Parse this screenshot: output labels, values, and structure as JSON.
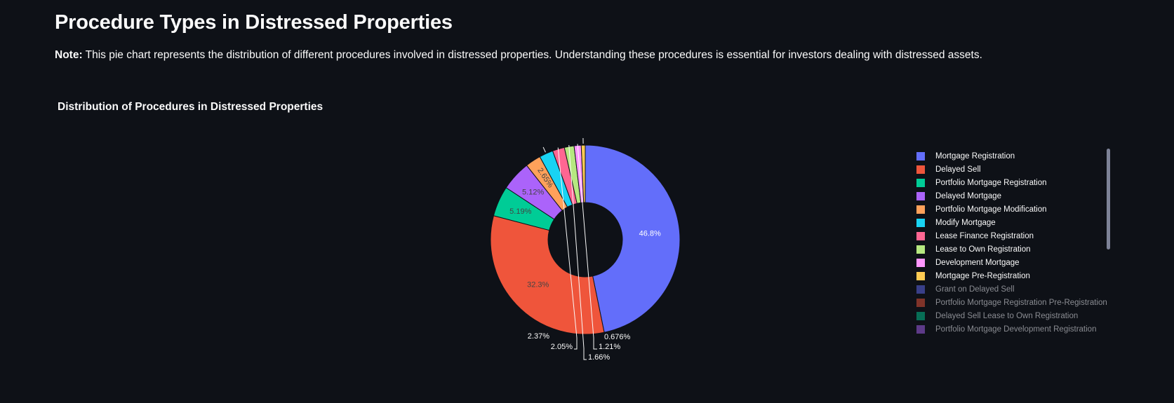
{
  "page": {
    "title": "Procedure Types in Distressed Properties",
    "note_label": "Note:",
    "note_text": " This pie chart represents the distribution of different procedures involved in distressed properties. Understanding these procedures is essential for investors dealing with distressed assets."
  },
  "chart_data": {
    "type": "pie",
    "donut": true,
    "title": "Distribution of Procedures in Distressed Properties",
    "legend_position": "right",
    "slices": [
      {
        "name": "Mortgage Registration",
        "value": 46.8,
        "label": "46.8%",
        "color": "#636efa"
      },
      {
        "name": "Delayed Sell",
        "value": 32.3,
        "label": "32.3%",
        "color": "#ef553b"
      },
      {
        "name": "Portfolio Mortgage Registration",
        "value": 5.19,
        "label": "5.19%",
        "color": "#00cc96"
      },
      {
        "name": "Delayed Mortgage",
        "value": 5.12,
        "label": "5.12%",
        "color": "#ab63fa"
      },
      {
        "name": "Portfolio Mortgage Modification",
        "value": 2.65,
        "label": "2.65%",
        "color": "#ffa15a"
      },
      {
        "name": "Modify Mortgage",
        "value": 2.37,
        "label": "2.37%",
        "color": "#19d3f3"
      },
      {
        "name": "Lease Finance Registration",
        "value": 2.05,
        "label": "2.05%",
        "color": "#ff6692"
      },
      {
        "name": "Lease to Own Registration",
        "value": 1.66,
        "label": "1.66%",
        "color": "#b6e880"
      },
      {
        "name": "Development Mortgage",
        "value": 1.21,
        "label": "1.21%",
        "color": "#ff97ff"
      },
      {
        "name": "Mortgage Pre-Registration",
        "value": 0.676,
        "label": "0.676%",
        "color": "#fecb52"
      }
    ],
    "legend_entries": [
      {
        "name": "Mortgage Registration",
        "color": "#636efa",
        "faded": false
      },
      {
        "name": "Delayed Sell",
        "color": "#ef553b",
        "faded": false
      },
      {
        "name": "Portfolio Mortgage Registration",
        "color": "#00cc96",
        "faded": false
      },
      {
        "name": "Delayed Mortgage",
        "color": "#ab63fa",
        "faded": false
      },
      {
        "name": "Portfolio Mortgage Modification",
        "color": "#ffa15a",
        "faded": false
      },
      {
        "name": "Modify Mortgage",
        "color": "#19d3f3",
        "faded": false
      },
      {
        "name": "Lease Finance Registration",
        "color": "#ff6692",
        "faded": false
      },
      {
        "name": "Lease to Own Registration",
        "color": "#b6e880",
        "faded": false
      },
      {
        "name": "Development Mortgage",
        "color": "#ff97ff",
        "faded": false
      },
      {
        "name": "Mortgage Pre-Registration",
        "color": "#fecb52",
        "faded": false
      },
      {
        "name": "Grant on Delayed Sell",
        "color": "#636efa",
        "faded": true
      },
      {
        "name": "Portfolio Mortgage Registration Pre-Registration",
        "color": "#ef553b",
        "faded": true
      },
      {
        "name": "Delayed Sell Lease to Own Registration",
        "color": "#00cc96",
        "faded": true
      },
      {
        "name": "Portfolio Mortgage Development Registration",
        "color": "#ab63fa",
        "faded": true
      }
    ]
  }
}
